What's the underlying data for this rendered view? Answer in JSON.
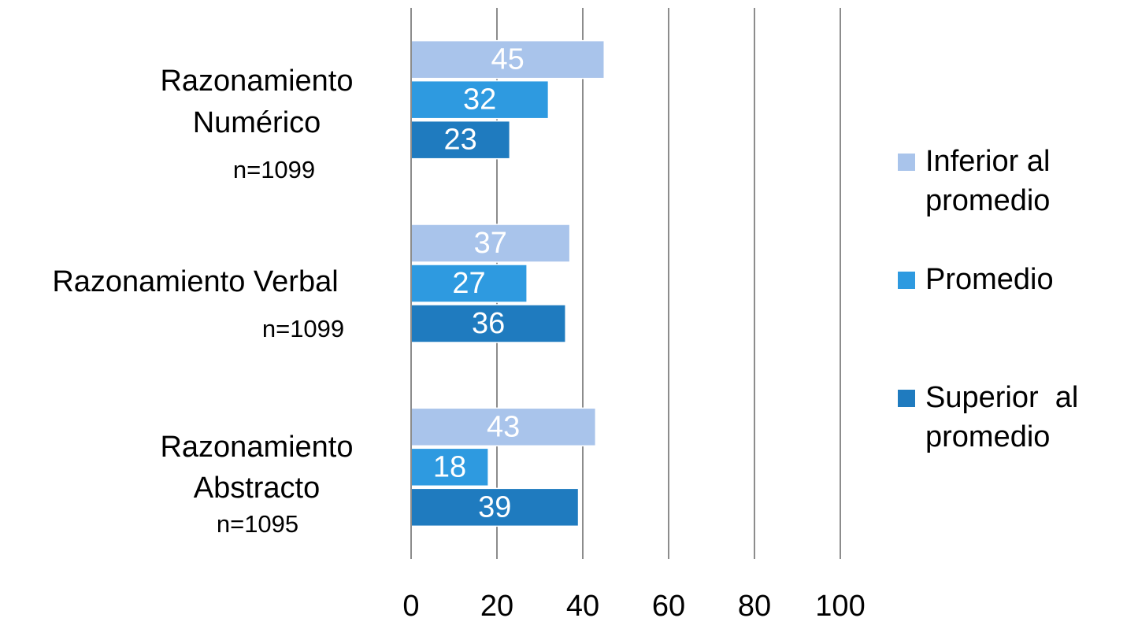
{
  "chart_data": {
    "type": "hbar",
    "categories": [
      [
        "Razonamiento",
        "Numérico"
      ],
      [
        "Razonamiento Verbal"
      ],
      [
        "Razonamiento",
        "Abstracto"
      ]
    ],
    "sample_sizes": [
      "n=1099",
      "n=1099",
      "n=1095"
    ],
    "series": [
      {
        "name": "Inferior al promedio",
        "color": "#a9c4eb",
        "values": [
          45,
          37,
          43
        ]
      },
      {
        "name": "Promedio",
        "color": "#2e9ae0",
        "values": [
          32,
          27,
          18
        ]
      },
      {
        "name": "Superior  al promedio",
        "color": "#1f7bbf",
        "values": [
          23,
          36,
          39
        ]
      }
    ],
    "xlim": [
      0,
      100
    ],
    "xticks": [
      0,
      20,
      40,
      60,
      80,
      100
    ],
    "grid": true,
    "legend": "right"
  }
}
